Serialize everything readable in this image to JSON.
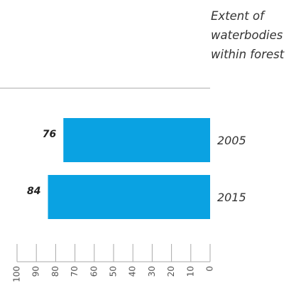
{
  "chart_data": {
    "type": "bar",
    "orientation": "horizontal",
    "x_direction": "reversed",
    "title_lines": [
      "Extent of",
      "waterbodies",
      "within forest"
    ],
    "categories": [
      "2005",
      "2015"
    ],
    "values": [
      76,
      84
    ],
    "value_labels": [
      "76",
      "84"
    ],
    "xlim": [
      0,
      100
    ],
    "ticks": [
      {
        "value": 100,
        "label": "100"
      },
      {
        "value": 90,
        "label": "90"
      },
      {
        "value": 80,
        "label": "80"
      },
      {
        "value": 70,
        "label": "70"
      },
      {
        "value": 60,
        "label": "60"
      },
      {
        "value": 50,
        "label": "50"
      },
      {
        "value": 40,
        "label": "40"
      },
      {
        "value": 30,
        "label": "30"
      },
      {
        "value": 20,
        "label": "20"
      },
      {
        "value": 10,
        "label": "10"
      },
      {
        "value": 0,
        "label": "0"
      }
    ],
    "grid": false,
    "colors": {
      "bar": "#0aa2e2",
      "axis": "#aaaaaa"
    }
  }
}
